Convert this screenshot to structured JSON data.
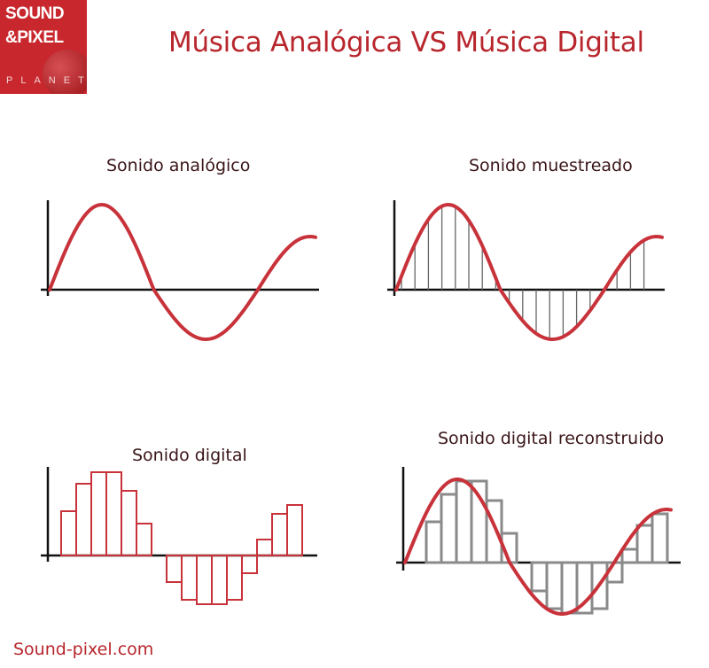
{
  "logo": {
    "line1": "SOUND",
    "line2": "&PIXEL",
    "line3": "PLANET"
  },
  "title": "Música Analógica VS Música Digital",
  "panels": {
    "analog": "Sonido analógico",
    "sampled": "Sonido muestreado",
    "digital": "Sonido digital",
    "reconstructed": "Sonido digital reconstruido"
  },
  "footer": "Sound-pixel.com",
  "colors": {
    "brand": "#c8282d",
    "wave": "#c8323a",
    "samples": "#777777",
    "axis": "#111111"
  }
}
